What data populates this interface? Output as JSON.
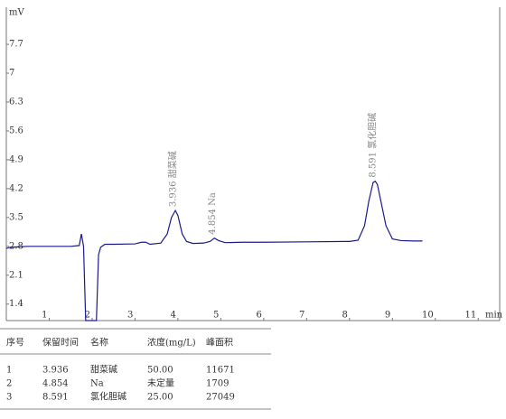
{
  "chart_data": {
    "type": "line",
    "y_label": "mV",
    "x_label": "min",
    "x": [
      0,
      0.1,
      0.5,
      1.0,
      1.5,
      1.7,
      1.75,
      1.8,
      1.85,
      1.9,
      2.1,
      2.15,
      2.2,
      2.3,
      2.5,
      3.0,
      3.15,
      3.25,
      3.35,
      3.6,
      3.75,
      3.85,
      3.94,
      4.0,
      4.1,
      4.2,
      4.35,
      4.6,
      4.75,
      4.85,
      4.95,
      5.1,
      5.5,
      6.0,
      7.0,
      8.0,
      8.2,
      8.35,
      8.45,
      8.55,
      8.6,
      8.65,
      8.75,
      8.85,
      9.0,
      9.2,
      9.5,
      9.7
    ],
    "series": [
      {
        "color": "#1a1a8c",
        "values": [
          2.75,
          2.78,
          2.8,
          2.8,
          2.8,
          2.82,
          3.1,
          2.8,
          1.0,
          1.0,
          1.0,
          2.6,
          2.78,
          2.85,
          2.85,
          2.86,
          2.9,
          2.9,
          2.85,
          2.88,
          3.1,
          3.5,
          3.67,
          3.55,
          3.1,
          2.92,
          2.87,
          2.88,
          2.92,
          3.0,
          2.94,
          2.89,
          2.9,
          2.9,
          2.91,
          2.92,
          2.95,
          3.3,
          3.9,
          4.35,
          4.38,
          4.3,
          3.8,
          3.3,
          2.98,
          2.94,
          2.93,
          2.93
        ]
      }
    ],
    "xlim": [
      0,
      11.5
    ],
    "xticks": [
      1,
      2,
      3,
      4,
      5,
      6,
      7,
      8,
      9,
      10,
      11
    ],
    "ylim": [
      1.0,
      8.6
    ],
    "yticks": [
      1.4,
      2.1,
      2.8,
      3.5,
      4.2,
      4.9,
      5.6,
      6.3,
      7,
      7.7
    ],
    "annotations": [
      {
        "text": "3.936 甜菜碱",
        "x": 3.936,
        "y": 3.67
      },
      {
        "text": "4.854 Na",
        "x": 4.854,
        "y": 3.0
      },
      {
        "text": "8.591 氯化胆碱",
        "x": 8.591,
        "y": 4.38
      }
    ]
  },
  "table": {
    "columns": [
      "序号",
      "保留时间",
      "名称",
      "浓度(mg/L)",
      "峰面积"
    ],
    "rows": [
      [
        "1",
        "3.936",
        "甜菜碱",
        "50.00",
        "11671"
      ],
      [
        "2",
        "4.854",
        "Na",
        "未定量",
        "1709"
      ],
      [
        "3",
        "8.591",
        "氯化胆碱",
        "25.00",
        "27049"
      ]
    ]
  }
}
